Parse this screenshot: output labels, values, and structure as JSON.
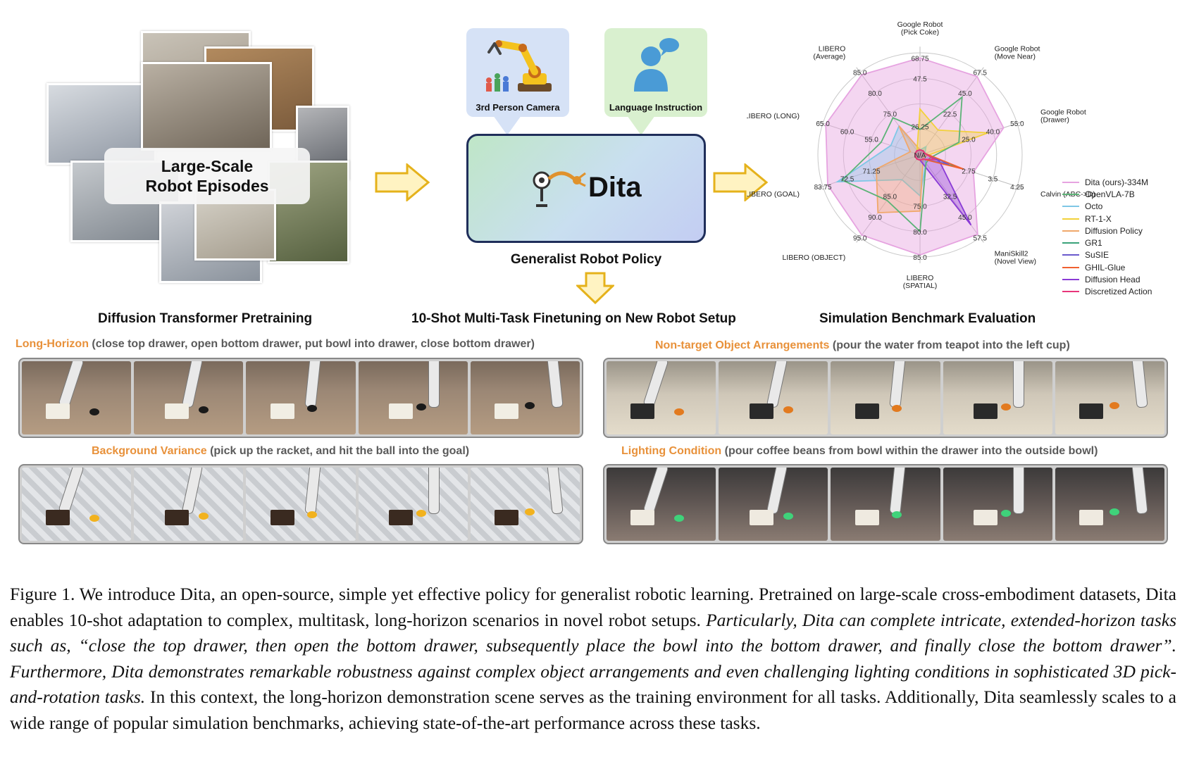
{
  "top": {
    "collage_label_line1": "Large-Scale",
    "collage_label_line2": "Robot Episodes",
    "camera_label": "3rd Person Camera",
    "language_label": "Language Instruction",
    "model_name": "Dita",
    "policy_caption": "Generalist Robot Policy",
    "stage_labels": [
      "Diffusion Transformer Pretraining",
      "10-Shot Multi-Task Finetuning on New Robot Setup",
      "Simulation Benchmark Evaluation"
    ]
  },
  "chart_data": {
    "type": "radar",
    "axes": [
      {
        "label_lines": [
          "Google Robot",
          "(Pick Coke)"
        ]
      },
      {
        "label_lines": [
          "Google Robot",
          "(Move Near)"
        ]
      },
      {
        "label_lines": [
          "Google Robot",
          "(Drawer)"
        ]
      },
      {
        "label_lines": [
          "Calvin (ABC->D)"
        ]
      },
      {
        "label_lines": [
          "ManiSkill2",
          "(Novel View)"
        ]
      },
      {
        "label_lines": [
          "LIBERO",
          "(SPATIAL)"
        ]
      },
      {
        "label_lines": [
          "LIBERO (OBJECT)"
        ]
      },
      {
        "label_lines": [
          "LIBERO (GOAL)"
        ]
      },
      {
        "label_lines": [
          "LIBERO (LONG)"
        ]
      },
      {
        "label_lines": [
          "LIBERO",
          "(Average)"
        ]
      }
    ],
    "center_label": "N/A",
    "tick_labels": [
      [
        "47.5",
        "68.75"
      ],
      [
        "22.5",
        "45.0",
        "67.5"
      ],
      [
        "25.0",
        "40.0",
        "55.0"
      ],
      [
        "2.75",
        "3.5",
        "4.25"
      ],
      [
        "32.5",
        "45.0",
        "57.5"
      ],
      [
        "75.0",
        "80.0",
        "85.0"
      ],
      [
        "85.0",
        "90.0",
        "95.0"
      ],
      [
        "71.25",
        "72.5",
        "83.75"
      ],
      [
        "55.0",
        "60.0",
        "65.0"
      ],
      [
        "75.0",
        "80.0",
        "85.0"
      ]
    ],
    "inner_tick_labels": [
      "26.25"
    ],
    "legend_placement": "right",
    "series": [
      {
        "name": "Dita (ours)-334M",
        "color": "#e6a3e0",
        "fill": true,
        "values": [
          0.95,
          0.95,
          0.86,
          0.55,
          0.96,
          0.98,
          0.97,
          0.95,
          0.97,
          0.97
        ]
      },
      {
        "name": "OpenVLA-7B",
        "color": "#5cb377",
        "fill": false,
        "values": [
          0.25,
          0.7,
          0.4,
          0.1,
          0.1,
          0.75,
          0.55,
          0.8,
          0.4,
          0.45
        ]
      },
      {
        "name": "Octo",
        "color": "#7fc7e6",
        "fill": true,
        "values": [
          0.05,
          0.1,
          0.05,
          0.05,
          0.1,
          0.4,
          0.3,
          0.85,
          0.3,
          0.35
        ]
      },
      {
        "name": "RT-1-X",
        "color": "#f2d13a",
        "fill": true,
        "values": [
          0.45,
          0.3,
          0.7,
          0.05,
          0.05,
          0.05,
          0.05,
          0.05,
          0.05,
          0.05
        ]
      },
      {
        "name": "Diffusion Policy",
        "color": "#f0a86b",
        "fill": true,
        "values": [
          0.05,
          0.05,
          0.05,
          0.05,
          0.05,
          0.55,
          0.7,
          0.45,
          0.1,
          0.35
        ]
      },
      {
        "name": "GR1",
        "color": "#3aa37a",
        "fill": false,
        "values": [
          0.05,
          0.05,
          0.05,
          0.4,
          0.05,
          0.05,
          0.05,
          0.05,
          0.05,
          0.05
        ]
      },
      {
        "name": "SuSIE",
        "color": "#6a5acd",
        "fill": false,
        "values": [
          0.05,
          0.05,
          0.05,
          0.3,
          0.05,
          0.05,
          0.05,
          0.05,
          0.05,
          0.05
        ]
      },
      {
        "name": "GHIL-Glue",
        "color": "#f06030",
        "fill": false,
        "values": [
          0.05,
          0.05,
          0.05,
          0.45,
          0.05,
          0.05,
          0.05,
          0.05,
          0.05,
          0.05
        ]
      },
      {
        "name": "Diffusion Head",
        "color": "#8a3bd6",
        "fill": true,
        "values": [
          0.05,
          0.05,
          0.05,
          0.2,
          0.85,
          0.05,
          0.05,
          0.05,
          0.05,
          0.05
        ]
      },
      {
        "name": "Discretized Action",
        "color": "#e8357a",
        "fill": false,
        "values": [
          0.05,
          0.05,
          0.05,
          0.15,
          0.05,
          0.05,
          0.05,
          0.05,
          0.05,
          0.05
        ]
      }
    ]
  },
  "tasks": [
    {
      "highlight": "Long-Horizon",
      "desc": " (close top drawer, open bottom drawer, put bowl into drawer, close bottom drawer)",
      "scene": "drawer"
    },
    {
      "highlight": "Non-target Object Arrangements",
      "desc": " (pour the water from teapot into the left cup)",
      "scene": "table"
    },
    {
      "highlight": "Background Variance",
      "desc": " (pick up the racket, and hit the ball into the goal)",
      "scene": "tiles"
    },
    {
      "highlight": "Lighting Condition",
      "desc": " (pour coffee beans from bowl within the drawer into the outside bowl)",
      "scene": "dark"
    }
  ],
  "caption": {
    "normal1": "Figure 1. We introduce Dita, an open-source, simple yet effective policy for generalist robotic learning. Pretrained on large-scale cross-embodiment datasets, Dita enables 10-shot adaptation to complex, multitask, long-horizon scenarios in novel robot setups. ",
    "italic": "Particularly, Dita can complete intricate, extended-horizon tasks such as, “close the top drawer, then open the bottom drawer, subsequently place the bowl into the bottom drawer, and finally close the bottom drawer”. Furthermore, Dita demonstrates remarkable robustness against complex object arrangements and even challenging lighting conditions in sophisticated 3D pick-and-rotation tasks.",
    "normal2": " In this context, the long-horizon demonstration scene serves as the training environment for all tasks. Additionally, Dita seamlessly scales to a wide range of popular simulation benchmarks, achieving state-of-the-art performance across these tasks."
  }
}
